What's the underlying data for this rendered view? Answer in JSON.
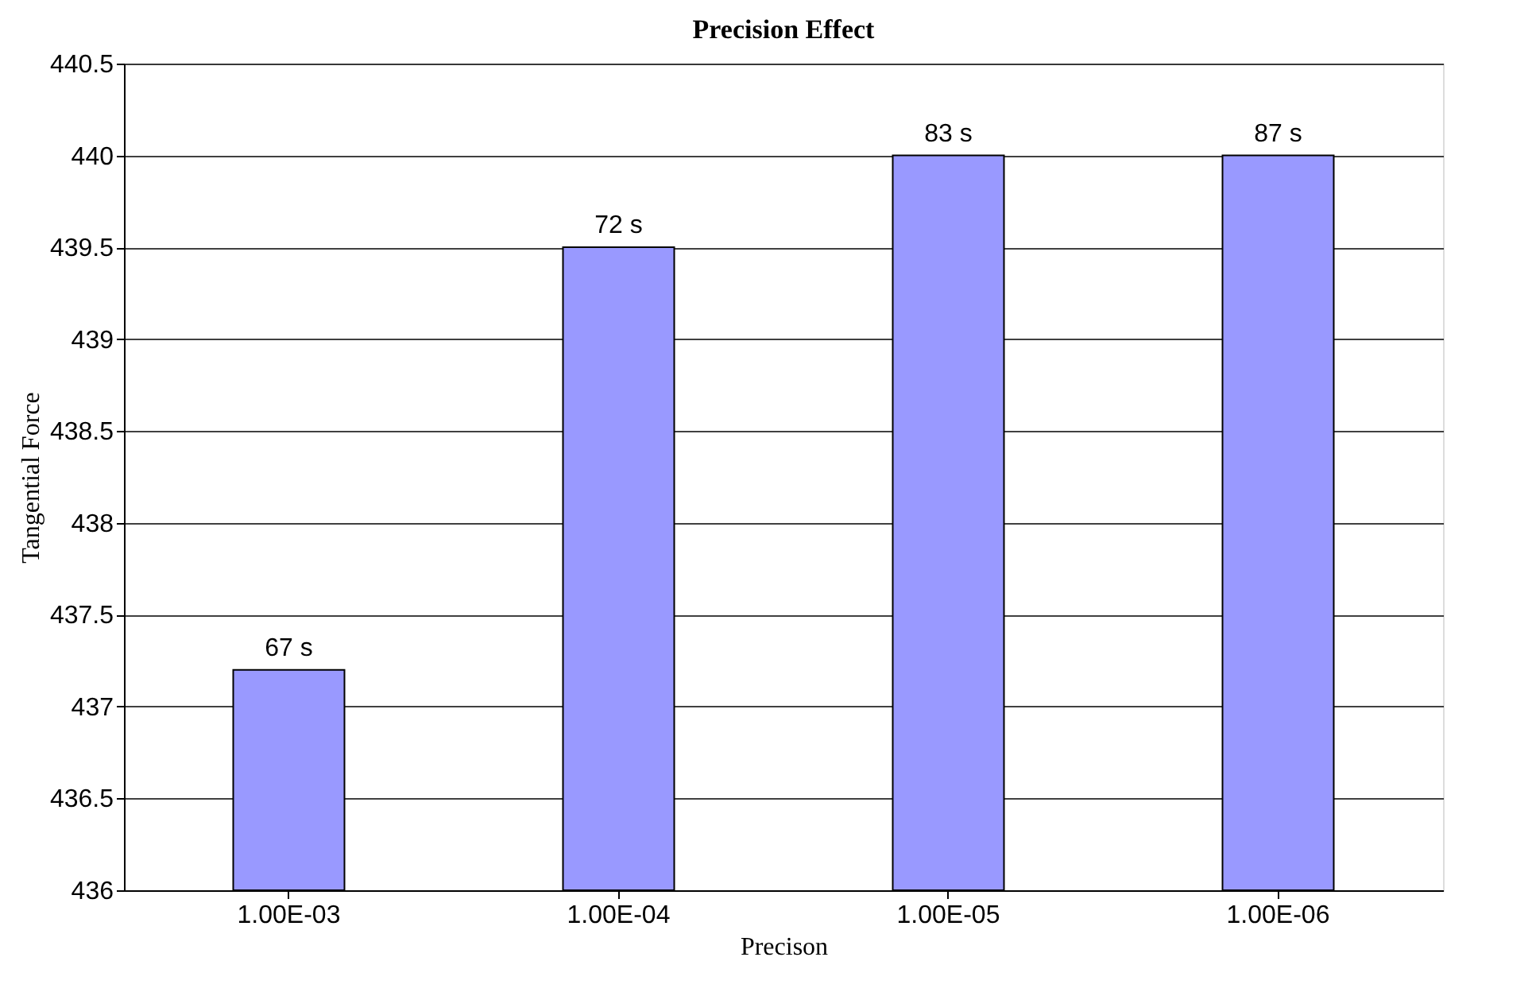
{
  "chart_data": {
    "type": "bar",
    "title": "Precision Effect",
    "xlabel": "Precison",
    "ylabel": "Tangential Force",
    "categories": [
      "1.00E-03",
      "1.00E-04",
      "1.00E-05",
      "1.00E-06"
    ],
    "values": [
      437.2,
      439.5,
      440,
      440
    ],
    "color": "#9999ff",
    "annotations": [
      {
        "text": "67 s",
        "x": "1.00E-03",
        "y": 437.2
      },
      {
        "text": "72 s",
        "x": "1.00E-04",
        "y": 439.5
      },
      {
        "text": "83 s",
        "x": "1.00E-05",
        "y": 440
      },
      {
        "text": "87 s",
        "x": "1.00E-06",
        "y": 440
      }
    ],
    "ylim": [
      436,
      440.5
    ],
    "yticks": [
      436,
      436.5,
      437,
      437.5,
      438,
      438.5,
      439,
      439.5,
      440,
      440.5
    ],
    "grid": "y"
  }
}
